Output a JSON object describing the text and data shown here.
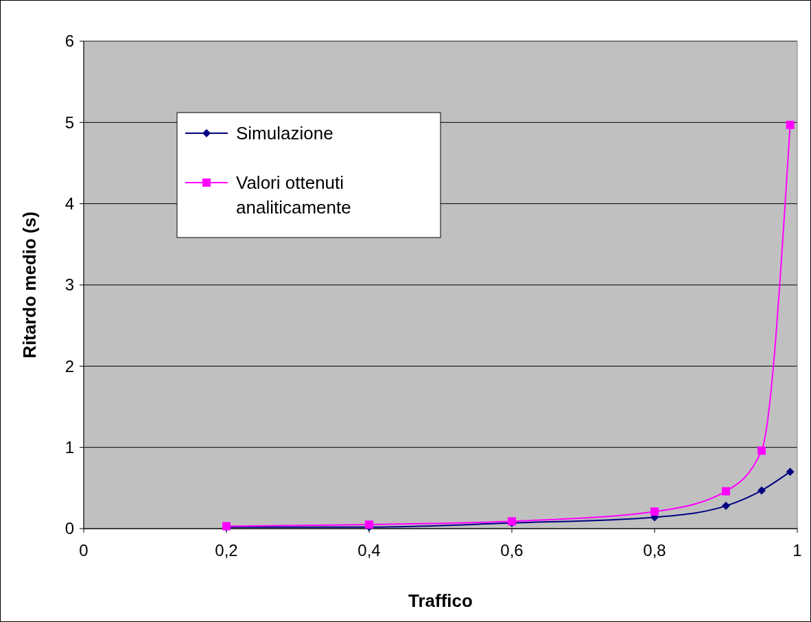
{
  "chart_data": {
    "type": "line",
    "xlabel": "Traffico",
    "ylabel": "Ritardo medio (s)",
    "x": [
      0.2,
      0.4,
      0.6,
      0.8,
      0.9,
      0.95,
      0.99
    ],
    "series": [
      {
        "name": "Simulazione",
        "color": "#000080",
        "marker": "diamond",
        "values": [
          0.02,
          0.02,
          0.07,
          0.14,
          0.28,
          0.47,
          0.7
        ]
      },
      {
        "name": "Valori ottenuti analiticamente",
        "color": "#ff00ff",
        "marker": "square",
        "values": [
          0.03,
          0.05,
          0.09,
          0.21,
          0.46,
          0.96,
          4.97
        ]
      }
    ],
    "xlim": [
      0,
      1
    ],
    "xticks": [
      0,
      {
        "value": 0.2,
        "label": "0,2"
      },
      {
        "value": 0.4,
        "label": "0,4"
      },
      {
        "value": 0.6,
        "label": "0,6"
      },
      {
        "value": 0.8,
        "label": "0,8"
      },
      1
    ],
    "ylim": [
      0,
      6
    ],
    "yticks": [
      0,
      1,
      2,
      3,
      4,
      5,
      6
    ],
    "grid": "y",
    "legend": "top left"
  }
}
